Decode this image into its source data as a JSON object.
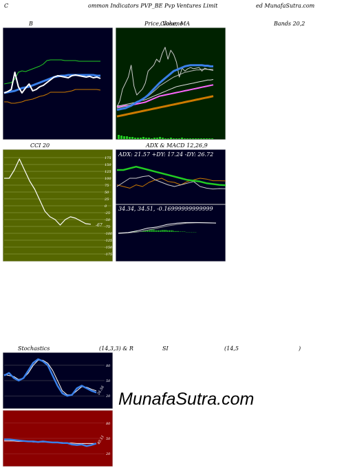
{
  "header": {
    "left": "C",
    "center": "ommon  Indicators PVP_BE Pvp Ventures Limit",
    "right": "ed MunafaSutra.com"
  },
  "titles": {
    "bands_b": "B",
    "price_a": "Price,  Volume",
    "price_b": "Close,",
    "price_c": "MA",
    "bands_right": "Bands 20,2",
    "cci": "CCI 20",
    "adx_macd": "ADX  & MACD 12,26,9",
    "stoch": "Stochastics",
    "stoch_params": "(14,3,3) & R",
    "rsi_si": "SI",
    "rsi_params": "(14,5",
    "rsi_close": ")"
  },
  "watermark": "MunafaSutra.com",
  "colors": {
    "navy_bg": "#000022",
    "green_bg": "#002200",
    "olive_bg": "#556600",
    "red_bg": "#8b0000",
    "white": "#ffffff",
    "blue": "#3a7fe8",
    "green": "#22cc22",
    "orange": "#cc7a00"
  },
  "chart_data": [
    {
      "type": "line",
      "name": "bollinger-bands",
      "x": [
        0,
        1,
        2,
        3,
        4,
        5,
        6,
        7,
        8,
        9,
        10,
        11,
        12,
        13,
        14,
        15,
        16,
        17,
        18,
        19,
        20,
        21,
        22,
        23,
        24,
        25,
        26,
        27
      ],
      "series": [
        {
          "key": "price",
          "values": [
            5,
            7,
            10,
            35,
            14,
            5,
            12,
            18,
            8,
            10,
            14,
            16,
            20,
            24,
            28,
            30,
            29,
            28,
            27,
            30,
            31,
            30,
            29,
            28,
            29,
            27,
            28,
            26
          ]
        },
        {
          "key": "upper",
          "values": [
            18,
            19,
            20,
            25,
            35,
            37,
            36,
            38,
            40,
            42,
            44,
            47,
            52,
            53,
            53,
            53,
            53,
            52,
            52,
            52,
            52,
            51,
            51,
            51,
            51,
            51,
            51,
            51
          ]
        },
        {
          "key": "middle",
          "values": [
            5,
            6,
            7,
            8,
            10,
            12,
            13,
            14,
            16,
            18,
            20,
            22,
            24,
            26,
            28,
            29,
            30,
            30,
            31,
            31,
            31,
            31,
            31,
            31,
            31,
            31,
            30,
            30
          ]
        },
        {
          "key": "lower",
          "values": [
            -8,
            -8,
            -10,
            -10,
            -9,
            -8,
            -6,
            -5,
            -4,
            -2,
            0,
            1,
            3,
            6,
            6,
            6,
            6,
            6,
            7,
            8,
            10,
            10,
            10,
            10,
            10,
            10,
            10,
            9
          ]
        }
      ]
    },
    {
      "type": "line",
      "name": "price-volume-ma",
      "x": [
        0,
        1,
        2,
        3,
        4,
        5,
        6,
        7,
        8,
        9,
        10,
        11,
        12,
        13,
        14,
        15,
        16,
        17,
        18,
        19,
        20,
        21,
        22,
        23,
        24,
        25,
        26,
        27,
        28,
        29,
        30,
        31,
        32,
        33,
        34
      ],
      "series": [
        {
          "key": "price",
          "values": [
            20,
            30,
            50,
            60,
            70,
            90,
            55,
            40,
            45,
            50,
            60,
            80,
            85,
            90,
            100,
            95,
            110,
            120,
            100,
            115,
            108,
            95,
            70,
            85,
            80,
            84,
            86,
            84,
            85,
            86,
            80,
            85,
            83,
            82,
            81
          ]
        },
        {
          "key": "ma_a",
          "values": [
            15,
            16,
            17,
            18,
            20,
            22,
            25,
            28,
            30,
            33,
            36,
            40,
            45,
            50,
            55,
            60,
            64,
            68,
            72,
            76,
            80,
            82,
            84,
            86,
            88,
            89,
            90,
            90,
            90,
            90,
            90,
            89,
            89,
            88,
            88
          ]
        },
        {
          "key": "ma_b",
          "values": [
            18,
            19,
            20,
            21,
            22,
            24,
            26,
            28,
            30,
            32,
            35,
            38,
            42,
            46,
            50,
            55,
            58,
            61,
            64,
            67,
            70,
            72,
            74,
            76,
            78,
            79,
            80,
            81,
            82,
            82,
            83,
            83,
            83,
            83,
            83
          ]
        },
        {
          "key": "ma_c",
          "values": [
            22,
            22,
            23,
            24,
            25,
            26,
            27,
            28,
            30,
            31,
            32,
            34,
            36,
            38,
            40,
            42,
            44,
            46,
            48,
            50,
            52,
            54,
            55,
            56,
            57,
            58,
            59,
            60,
            61,
            62,
            63,
            64,
            65,
            65,
            66
          ]
        },
        {
          "key": "ma_d",
          "values": [
            20,
            20,
            21,
            22,
            22,
            23,
            24,
            25,
            26,
            27,
            28,
            30,
            32,
            34,
            36,
            38,
            39,
            40,
            41,
            42,
            43,
            44,
            45,
            46,
            47,
            48,
            49,
            50,
            51,
            52,
            53,
            54,
            55,
            56,
            57
          ]
        },
        {
          "key": "ma_long",
          "values": [
            4,
            5,
            6,
            7,
            8,
            9,
            10,
            11,
            12,
            13,
            14,
            15,
            16,
            17,
            18,
            19,
            20,
            21,
            22,
            23,
            24,
            25,
            26,
            27,
            28,
            29,
            30,
            31,
            32,
            33,
            34,
            35,
            36,
            37,
            38
          ]
        }
      ],
      "volume": [
        6,
        5,
        4,
        4,
        3,
        3,
        2,
        2,
        2,
        3,
        2,
        2,
        1,
        2,
        2,
        3,
        2,
        1,
        1,
        2,
        1,
        1,
        1,
        2,
        1,
        1,
        1,
        1,
        1,
        1,
        1,
        1,
        1,
        1,
        1
      ]
    },
    {
      "type": "line",
      "name": "cci",
      "ylim": [
        -175,
        175
      ],
      "y_ticks": [
        "175",
        "150",
        "125",
        "100",
        "75",
        "50",
        "25",
        "0",
        "-25",
        "-50",
        "-75",
        "-100",
        "-125",
        "-150",
        "-175"
      ],
      "last_value": "-67",
      "values": [
        100,
        100,
        130,
        170,
        130,
        90,
        60,
        20,
        -20,
        -40,
        -50,
        -70,
        -50,
        -40,
        -45,
        -55,
        -65,
        -67
      ]
    },
    {
      "type": "line",
      "name": "adx",
      "label": "ADX: 21.57  +DY: 17.24  -DY: 26.72",
      "series": [
        {
          "key": "adx",
          "values": [
            40,
            40,
            42,
            44,
            42,
            40,
            38,
            36,
            34,
            32,
            30,
            28,
            27,
            26,
            24,
            23,
            22,
            21.57
          ]
        },
        {
          "key": "plus_di",
          "values": [
            20,
            25,
            30,
            30,
            32,
            33,
            28,
            25,
            22,
            20,
            22,
            24,
            26,
            20,
            18,
            17,
            17.5,
            17.24
          ]
        },
        {
          "key": "minus_di",
          "values": [
            22,
            20,
            18,
            22,
            20,
            25,
            28,
            30,
            26,
            25,
            22,
            26,
            28,
            30,
            29,
            27,
            27,
            26.72
          ]
        }
      ]
    },
    {
      "type": "line",
      "name": "macd",
      "label": "34.34,  34.51,  -0.16999999999999",
      "series": [
        {
          "key": "macd",
          "values": [
            2,
            4,
            10,
            18,
            22,
            30,
            34,
            36,
            36,
            35,
            34.34
          ]
        },
        {
          "key": "signal",
          "values": [
            1,
            3,
            6,
            12,
            18,
            25,
            30,
            34,
            35,
            35,
            34.51
          ]
        }
      ],
      "histogram": [
        1,
        1,
        4,
        6,
        4,
        5,
        4,
        2,
        1,
        0,
        -0.17
      ]
    },
    {
      "type": "line",
      "name": "stochastics",
      "ylim": [
        0,
        100
      ],
      "y_ticks": [
        "80",
        "50",
        "20"
      ],
      "last_value": "26.56",
      "series": [
        {
          "key": "k",
          "values": [
            60,
            65,
            55,
            50,
            55,
            70,
            85,
            92,
            88,
            80,
            60,
            40,
            25,
            20,
            22,
            35,
            40,
            35,
            30,
            26.56
          ]
        },
        {
          "key": "d",
          "values": [
            62,
            60,
            58,
            52,
            55,
            65,
            80,
            90,
            90,
            84,
            70,
            50,
            30,
            22,
            22,
            30,
            38,
            37,
            33,
            30
          ]
        }
      ]
    },
    {
      "type": "line",
      "name": "rsi",
      "ylim": [
        0,
        100
      ],
      "y_ticks": [
        "80",
        "50",
        "20"
      ],
      "last_value": "40.11",
      "series": [
        {
          "key": "rsi",
          "values": [
            48,
            48,
            47,
            46,
            45,
            44,
            44,
            43,
            44,
            43,
            42,
            42,
            41,
            41,
            38,
            37,
            38,
            35,
            37,
            40.11
          ]
        },
        {
          "key": "ma",
          "values": [
            45,
            45,
            45,
            44,
            44,
            44,
            43,
            43,
            43,
            43,
            42,
            42,
            42,
            41,
            41,
            40,
            40,
            40,
            40,
            40
          ]
        }
      ]
    }
  ]
}
